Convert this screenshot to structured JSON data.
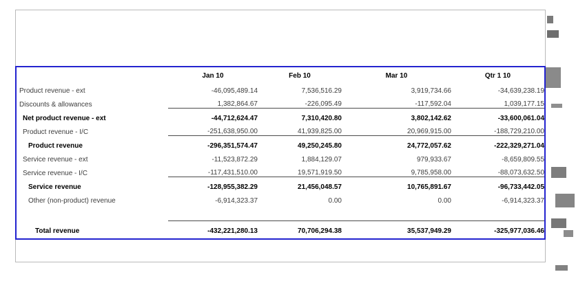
{
  "colors": {
    "selection_border": "#2222cf",
    "canvas_border": "#b9b9b9",
    "rule_line": "#4a4a4a",
    "text": "#3c3c3c",
    "text_bold": "#000000",
    "tear_fragment": "#7d7d7d"
  },
  "table": {
    "columns": [
      "Jan 10",
      "Feb 10",
      "Mar 10",
      "Qtr 1 10"
    ],
    "rows": [
      {
        "label": "Product revenue - ext",
        "values": [
          "-46,095,489.14",
          "7,536,516.29",
          "3,919,734.66",
          "-34,639,238.19"
        ],
        "bold": false,
        "indent": 0,
        "rule_below": false,
        "spacer": false
      },
      {
        "label": "Discounts & allowances",
        "values": [
          "1,382,864.67",
          "-226,095.49",
          "-117,592.04",
          "1,039,177.15"
        ],
        "bold": false,
        "indent": 0,
        "rule_below": true,
        "spacer": false
      },
      {
        "label": "Net product revenue - ext",
        "values": [
          "-44,712,624.47",
          "7,310,420.80",
          "3,802,142.62",
          "-33,600,061.04"
        ],
        "bold": true,
        "indent": 1,
        "rule_below": false,
        "spacer": false
      },
      {
        "label": "Product revenue - I/C",
        "values": [
          "-251,638,950.00",
          "41,939,825.00",
          "20,969,915.00",
          "-188,729,210.00"
        ],
        "bold": false,
        "indent": 1,
        "rule_below": true,
        "spacer": false
      },
      {
        "label": "Product revenue",
        "values": [
          "-296,351,574.47",
          "49,250,245.80",
          "24,772,057.62",
          "-222,329,271.04"
        ],
        "bold": true,
        "indent": 2,
        "rule_below": false,
        "spacer": false
      },
      {
        "label": "Service revenue - ext",
        "values": [
          "-11,523,872.29",
          "1,884,129.07",
          "979,933.67",
          "-8,659,809.55"
        ],
        "bold": false,
        "indent": 1,
        "rule_below": false,
        "spacer": false
      },
      {
        "label": "Service revenue - I/C",
        "values": [
          "-117,431,510.00",
          "19,571,919.50",
          "9,785,958.00",
          "-88,073,632.50"
        ],
        "bold": false,
        "indent": 1,
        "rule_below": true,
        "spacer": false
      },
      {
        "label": "Service revenue",
        "values": [
          "-128,955,382.29",
          "21,456,048.57",
          "10,765,891.67",
          "-96,733,442.05"
        ],
        "bold": true,
        "indent": 2,
        "rule_below": false,
        "spacer": false
      },
      {
        "label": "Other (non-product) revenue",
        "values": [
          "-6,914,323.37",
          "0.00",
          "0.00",
          "-6,914,323.37"
        ],
        "bold": false,
        "indent": 2,
        "rule_below": false,
        "spacer": false
      },
      {
        "label": "",
        "values": [
          "",
          "",
          "",
          ""
        ],
        "bold": false,
        "indent": 0,
        "rule_below": true,
        "spacer": true
      },
      {
        "label": "Total revenue",
        "values": [
          "-432,221,280.13",
          "70,706,294.38",
          "35,537,949.29",
          "-325,977,036.46"
        ],
        "bold": true,
        "indent": 3,
        "rule_below": false,
        "spacer": false
      }
    ]
  }
}
